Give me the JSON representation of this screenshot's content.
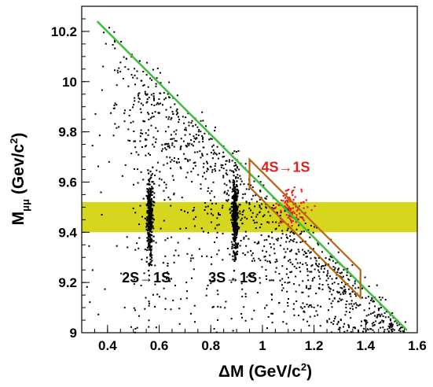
{
  "chart_data": {
    "type": "scatter",
    "title": "",
    "xlabel": {
      "prefix": "ΔM (GeV/c",
      "sup": "2",
      "suffix": ")"
    },
    "ylabel": {
      "base": "M",
      "sub": "μμ",
      "unit_prefix": " (Gev/c",
      "sup": "2",
      "suffix": ")"
    },
    "xlim": [
      0.3,
      1.6
    ],
    "ylim": [
      9.0,
      10.3
    ],
    "x_ticks": [
      {
        "value": 0.4,
        "label": "0.4"
      },
      {
        "value": 0.6,
        "label": "0.6"
      },
      {
        "value": 0.8,
        "label": "0.8"
      },
      {
        "value": 1.0,
        "label": "1"
      },
      {
        "value": 1.2,
        "label": "1.2"
      },
      {
        "value": 1.4,
        "label": "1.4"
      },
      {
        "value": 1.6,
        "label": "1.6"
      }
    ],
    "y_ticks": [
      {
        "value": 9.0,
        "label": "9"
      },
      {
        "value": 9.2,
        "label": "9.2"
      },
      {
        "value": 9.4,
        "label": "9.4"
      },
      {
        "value": 9.6,
        "label": "9.6"
      },
      {
        "value": 9.8,
        "label": "9.8"
      },
      {
        "value": 10.0,
        "label": "10"
      },
      {
        "value": 10.2,
        "label": "10.2"
      }
    ],
    "band": {
      "y_range": [
        9.4,
        9.52
      ],
      "color": "#d6d61e"
    },
    "diagonal_line": {
      "points": [
        [
          0.36,
          10.24
        ],
        [
          1.56,
          9.01
        ]
      ],
      "color": "#3fbf3f"
    },
    "selection_region": {
      "points": [
        [
          0.95,
          9.69
        ],
        [
          1.38,
          9.25
        ],
        [
          1.38,
          9.14
        ],
        [
          0.95,
          9.58
        ]
      ],
      "color": "#b8650e"
    },
    "clusters": [
      {
        "label": "2S→1S",
        "x_center": 0.564,
        "y_range": [
          9.31,
          9.6
        ],
        "color": "#000000"
      },
      {
        "label": "3S→1S",
        "x_center": 0.894,
        "y_range": [
          9.32,
          9.6
        ],
        "color": "#000000"
      },
      {
        "label": "4S→1S",
        "x_center": 1.11,
        "y_range": [
          9.43,
          9.56
        ],
        "color": "#e02020"
      }
    ],
    "annotations": [
      {
        "text": "2S→1S",
        "x": 0.55,
        "y": 9.2,
        "color": "#000000"
      },
      {
        "text": "3S→1S",
        "x": 0.885,
        "y": 9.2,
        "color": "#000000"
      },
      {
        "text": "4S→1S",
        "x": 1.09,
        "y": 9.64,
        "color": "#e02020"
      }
    ],
    "background_point_count": 1400,
    "point_color": "#000000",
    "grid": false,
    "legend": "none"
  }
}
